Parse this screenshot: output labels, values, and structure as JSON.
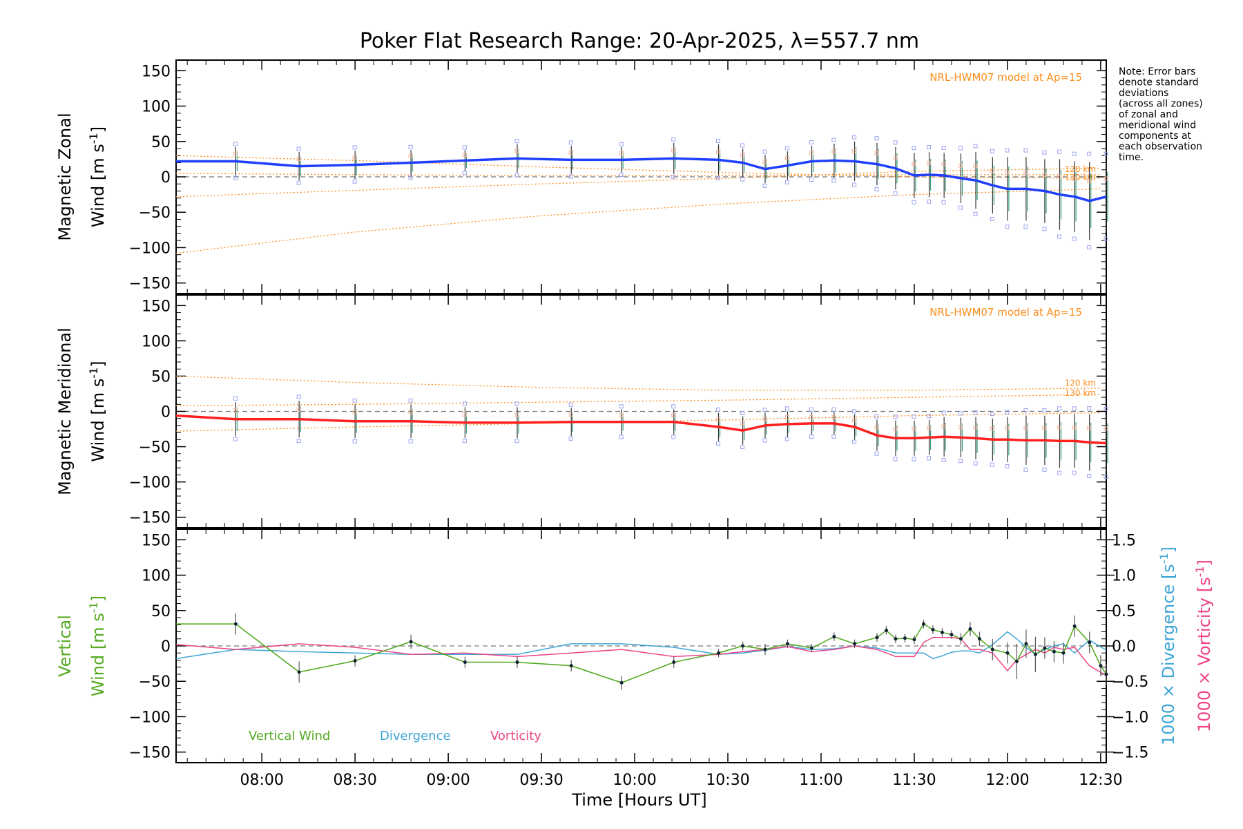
{
  "chart_data": {
    "title": "Poker Flat Research Range: 20-Apr-2025, λ=557.7 nm",
    "type": "line",
    "x_axis": {
      "label": "Time [Hours UT]",
      "ticks": [
        "08:00",
        "08:30",
        "09:00",
        "09:30",
        "10:00",
        "10:30",
        "11:00",
        "11:30",
        "12:00",
        "12:30"
      ],
      "tick_hours": [
        8.0,
        8.5,
        9.0,
        9.5,
        10.0,
        10.5,
        11.0,
        11.5,
        12.0,
        12.5
      ],
      "xlim_hours": [
        7.54,
        12.53
      ]
    },
    "note": [
      "Note: Error bars",
      "denote standard",
      "deviations",
      "(across all zones)",
      "of zonal and",
      "meridional wind",
      "components at",
      "each observation",
      "time."
    ],
    "panels": [
      {
        "id": "zonal",
        "ylabel": [
          "Magnetic Zonal",
          "Wind [m s-1]"
        ],
        "ylim": [
          -165,
          165
        ],
        "yticks": [
          150,
          100,
          50,
          0,
          -50,
          -100,
          -150
        ],
        "model_label": "NRL-HWM07 model at Ap=15",
        "alt_labels": [
          "120 km",
          "130 km"
        ],
        "series": {
          "name": "zonal wind",
          "color": "#1f3fff",
          "x": [
            7.54,
            7.86,
            8.2,
            8.5,
            8.8,
            9.09,
            9.37,
            9.66,
            9.93,
            10.21,
            10.45,
            10.58,
            10.7,
            10.82,
            10.95,
            11.07,
            11.18,
            11.3,
            11.4,
            11.5,
            11.58,
            11.66,
            11.75,
            11.83,
            11.92,
            12.0,
            12.1,
            12.2,
            12.28,
            12.36,
            12.44,
            12.53
          ],
          "y": [
            22,
            22,
            15,
            17,
            20,
            23,
            26,
            24,
            24,
            26,
            24,
            20,
            11,
            16,
            22,
            23,
            22,
            18,
            12,
            2,
            3,
            2,
            -2,
            -5,
            -12,
            -17,
            -17,
            -20,
            -25,
            -28,
            -34,
            -28
          ],
          "err": [
            20,
            20,
            20,
            20,
            18,
            15,
            20,
            20,
            18,
            22,
            22,
            20,
            20,
            20,
            22,
            24,
            28,
            30,
            30,
            32,
            32,
            32,
            35,
            40,
            40,
            45,
            45,
            45,
            50,
            50,
            55,
            50
          ]
        },
        "model_lines_at_x": [
          7.54,
          8.5,
          9.5,
          10.5,
          11.5,
          12.5
        ],
        "model_lines": [
          {
            "name": "model-upper",
            "y": [
              30,
              23,
              14,
              6,
              0,
              -2
            ]
          },
          {
            "name": "model-mid",
            "y": [
              -28,
              -19,
              -10,
              -2,
              8,
              12
            ]
          },
          {
            "name": "model-lower",
            "y": [
              -108,
              -78,
              -55,
              -38,
              -25,
              -17
            ]
          },
          {
            "name": "model-alt",
            "y": [
              5,
              3,
              2,
              2,
              3,
              3
            ]
          }
        ]
      },
      {
        "id": "meridional",
        "ylabel": [
          "Magnetic Meridional",
          "Wind [m s-1]"
        ],
        "ylim": [
          -165,
          165
        ],
        "yticks": [
          150,
          100,
          50,
          0,
          -50,
          -100,
          -150
        ],
        "model_label": "NRL-HWM07 model at Ap=15",
        "alt_labels": [
          "120 km",
          "130 km"
        ],
        "series": {
          "name": "meridional wind",
          "color": "#ff2020",
          "x": [
            7.54,
            7.86,
            8.2,
            8.5,
            8.8,
            9.09,
            9.37,
            9.66,
            9.93,
            10.21,
            10.45,
            10.58,
            10.7,
            10.82,
            10.95,
            11.07,
            11.18,
            11.3,
            11.4,
            11.5,
            11.58,
            11.66,
            11.75,
            11.83,
            11.92,
            12.0,
            12.1,
            12.2,
            12.28,
            12.36,
            12.44,
            12.53
          ],
          "y": [
            -6,
            -11,
            -11,
            -14,
            -14,
            -16,
            -16,
            -15,
            -15,
            -15,
            -22,
            -27,
            -20,
            -18,
            -17,
            -17,
            -22,
            -34,
            -38,
            -38,
            -37,
            -36,
            -37,
            -38,
            -40,
            -40,
            -41,
            -41,
            -42,
            -42,
            -44,
            -45
          ],
          "err": [
            22,
            24,
            26,
            24,
            24,
            22,
            22,
            20,
            18,
            18,
            20,
            20,
            18,
            18,
            16,
            16,
            18,
            22,
            25,
            25,
            25,
            28,
            28,
            30,
            30,
            32,
            35,
            35,
            38,
            38,
            40,
            40
          ]
        },
        "model_lines_at_x": [
          7.54,
          8.5,
          9.5,
          10.5,
          11.5,
          12.5
        ],
        "model_lines": [
          {
            "name": "model-upper",
            "y": [
              50,
              41,
              34,
              30,
              30,
              33
            ]
          },
          {
            "name": "model-mid",
            "y": [
              8,
              10,
              13,
              16,
              20,
              24
            ]
          },
          {
            "name": "model-lower",
            "y": [
              -28,
              -22,
              -17,
              -12,
              -6,
              -2
            ]
          }
        ]
      },
      {
        "id": "vertical",
        "ylabel": [
          "Vertical",
          "Wind [m s-1]"
        ],
        "ylim": [
          -165,
          165
        ],
        "yticks": [
          150,
          100,
          50,
          0,
          -50,
          -100,
          -150
        ],
        "right_axis": {
          "ylim": [
            -1.65,
            1.65
          ],
          "ticks": [
            1.5,
            1.0,
            0.5,
            0.0,
            -0.5,
            -1.0,
            -1.5
          ],
          "tick_labels": [
            "1.5",
            "1.0",
            "0.5",
            "0.0",
            "-0.5",
            "-1.0",
            "-1.5"
          ],
          "labels": [
            {
              "text": "1000 × Divergence [s-1]",
              "color": "#3ea6d6"
            },
            {
              "text": "1000 × Vorticity [s-1]",
              "color": "#ee4488"
            }
          ]
        },
        "legend": [
          {
            "name": "Vertical Wind",
            "color": "#55aa22"
          },
          {
            "name": "Divergence",
            "color": "#3ea6d6"
          },
          {
            "name": "Vorticity",
            "color": "#ee4488"
          }
        ],
        "vertical_wind": {
          "x": [
            7.54,
            7.86,
            8.2,
            8.5,
            8.8,
            9.09,
            9.37,
            9.66,
            9.93,
            10.21,
            10.45,
            10.58,
            10.7,
            10.82,
            10.95,
            11.07,
            11.18,
            11.3,
            11.35,
            11.4,
            11.45,
            11.5,
            11.55,
            11.6,
            11.65,
            11.7,
            11.75,
            11.8,
            11.85,
            11.92,
            12.0,
            12.05,
            12.1,
            12.15,
            12.2,
            12.25,
            12.3,
            12.36,
            12.44,
            12.5,
            12.53
          ],
          "y": [
            31,
            31,
            -37,
            -21,
            6,
            -23,
            -23,
            -28,
            -52,
            -23,
            -10,
            0,
            -5,
            3,
            -3,
            13,
            3,
            12,
            22,
            10,
            11,
            9,
            31,
            23,
            19,
            16,
            10,
            24,
            10,
            -5,
            -10,
            -22,
            3,
            -12,
            -3,
            -8,
            -10,
            28,
            5,
            -28,
            -40
          ],
          "err": [
            0,
            15,
            15,
            8,
            10,
            8,
            8,
            8,
            10,
            8,
            6,
            6,
            8,
            6,
            6,
            6,
            6,
            6,
            6,
            6,
            6,
            6,
            6,
            6,
            6,
            6,
            8,
            10,
            10,
            15,
            15,
            25,
            20,
            25,
            15,
            15,
            15,
            15,
            15,
            15,
            15
          ]
        },
        "divergence": {
          "x": [
            7.54,
            7.86,
            8.2,
            8.5,
            8.8,
            9.09,
            9.37,
            9.66,
            9.93,
            10.21,
            10.45,
            10.58,
            10.7,
            10.82,
            10.95,
            11.07,
            11.18,
            11.3,
            11.4,
            11.5,
            11.55,
            11.6,
            11.65,
            11.7,
            11.75,
            11.8,
            11.85,
            11.92,
            12.0,
            12.05,
            12.1,
            12.15,
            12.2,
            12.25,
            12.3,
            12.36,
            12.44,
            12.53
          ],
          "y": [
            -0.18,
            -0.05,
            -0.08,
            -0.1,
            -0.12,
            -0.12,
            -0.12,
            0.03,
            0.03,
            -0.02,
            -0.12,
            -0.1,
            -0.06,
            -0.01,
            -0.05,
            -0.04,
            0.0,
            -0.03,
            -0.1,
            -0.1,
            -0.1,
            -0.18,
            -0.14,
            -0.09,
            -0.07,
            -0.07,
            -0.1,
            0.02,
            0.2,
            0.1,
            -0.02,
            -0.12,
            -0.05,
            0.0,
            0.03,
            -0.1,
            0.08,
            -0.06
          ]
        },
        "vorticity": {
          "x": [
            7.54,
            7.86,
            8.2,
            8.5,
            8.8,
            9.09,
            9.37,
            9.66,
            9.93,
            10.21,
            10.45,
            10.58,
            10.7,
            10.82,
            10.95,
            11.07,
            11.18,
            11.3,
            11.4,
            11.5,
            11.55,
            11.6,
            11.65,
            11.7,
            11.75,
            11.8,
            11.85,
            11.92,
            12.0,
            12.05,
            12.1,
            12.15,
            12.2,
            12.25,
            12.3,
            12.36,
            12.44,
            12.53
          ],
          "y": [
            0.02,
            -0.05,
            0.03,
            -0.02,
            -0.12,
            -0.1,
            -0.15,
            -0.1,
            -0.05,
            -0.15,
            -0.12,
            -0.08,
            -0.05,
            -0.01,
            -0.08,
            -0.05,
            0.0,
            -0.05,
            -0.15,
            -0.15,
            0.05,
            0.12,
            0.12,
            0.12,
            0.1,
            -0.05,
            -0.05,
            -0.1,
            -0.35,
            -0.2,
            -0.12,
            -0.05,
            -0.1,
            -0.02,
            -0.05,
            -0.02,
            -0.28,
            -0.42
          ]
        }
      }
    ]
  }
}
